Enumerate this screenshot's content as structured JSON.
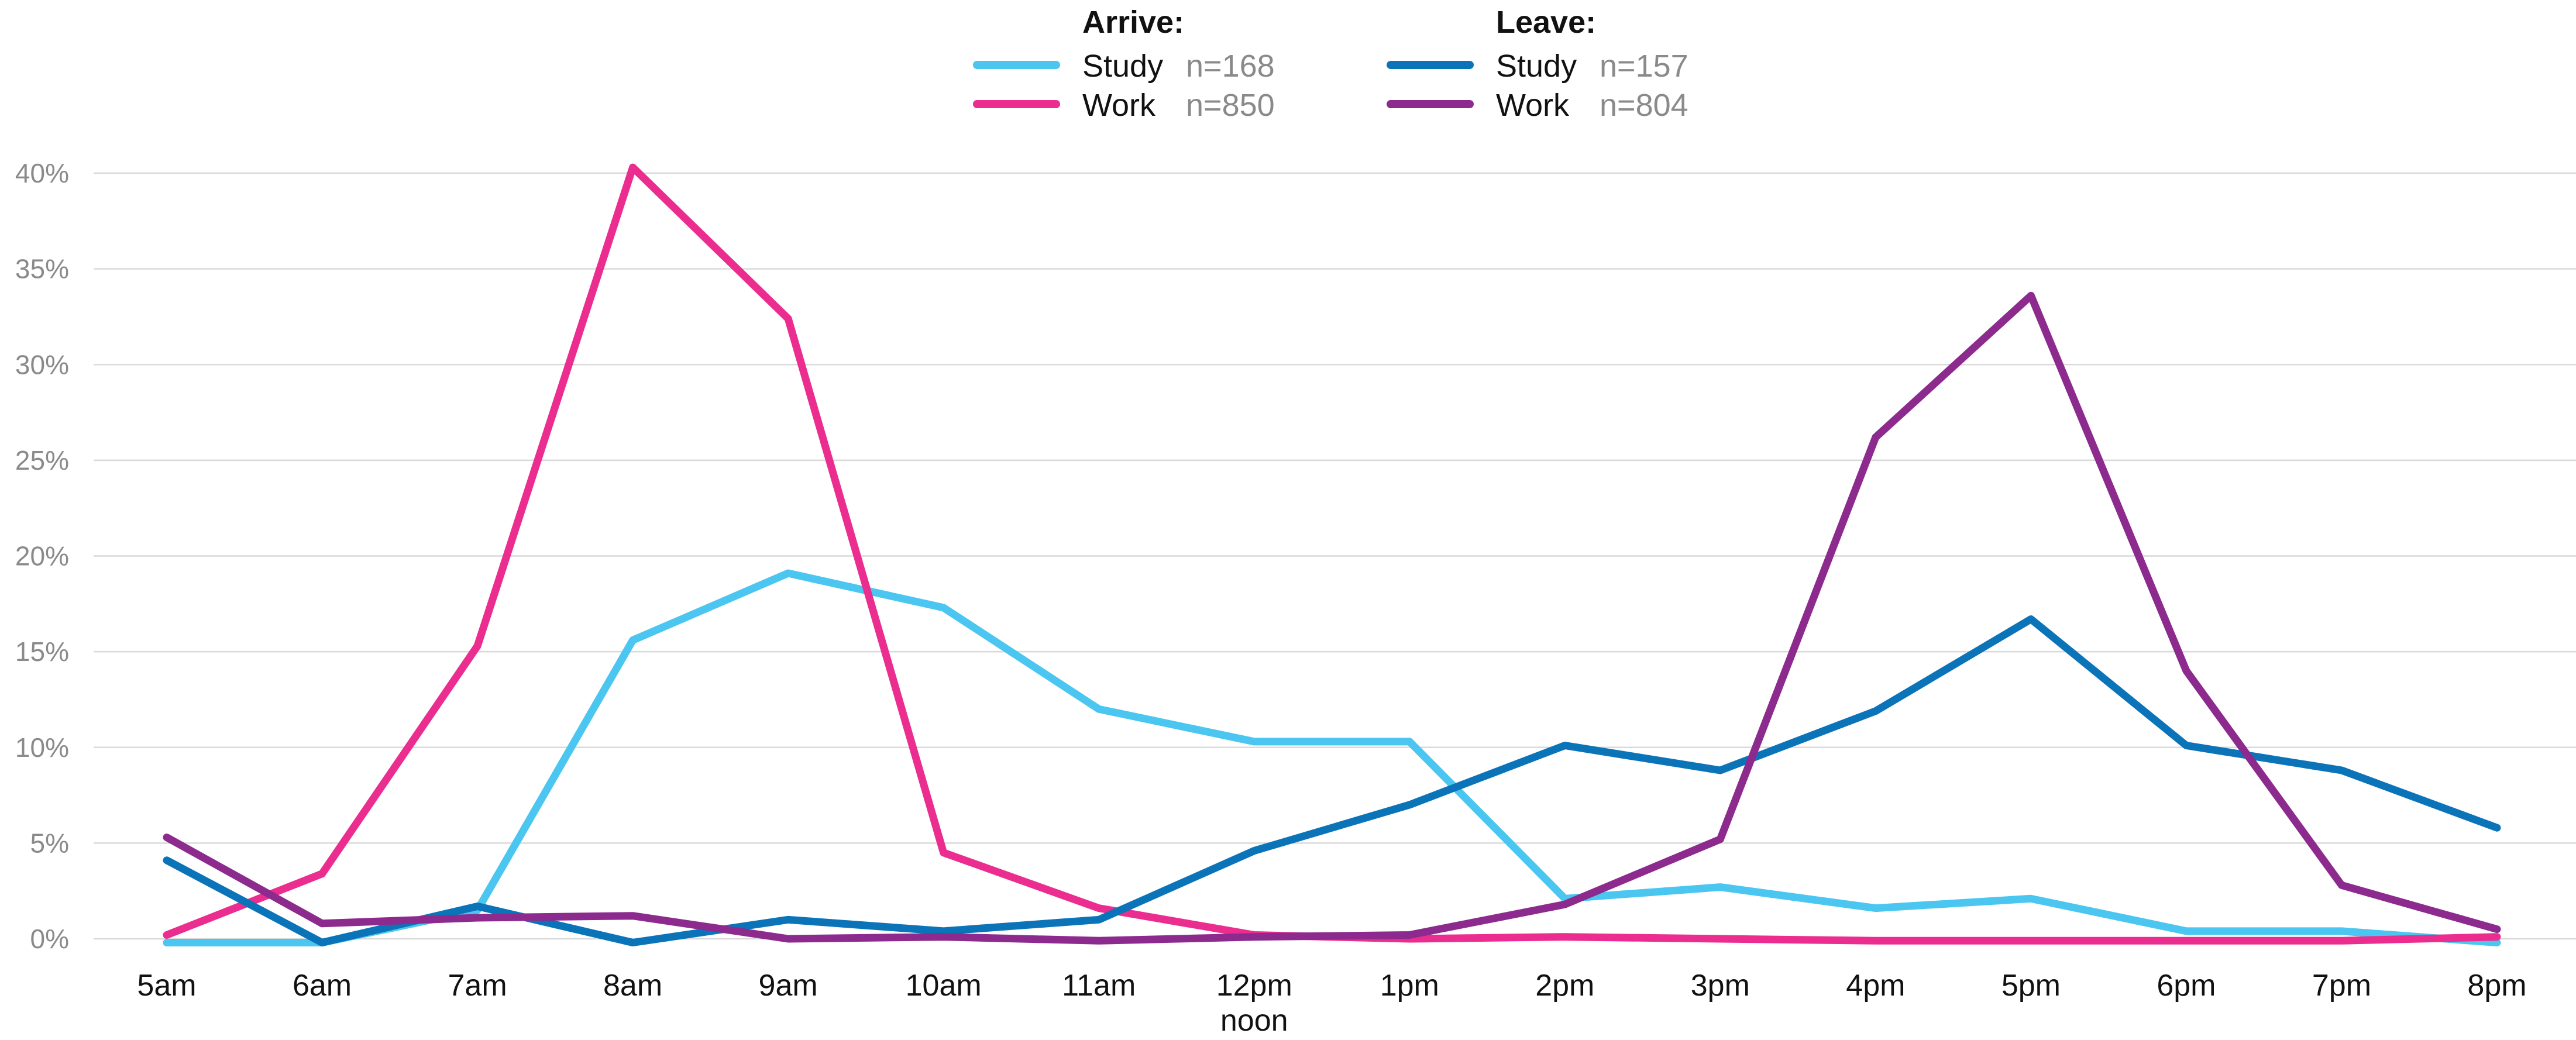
{
  "chart_data": {
    "type": "line",
    "title": "",
    "xlabel": "",
    "ylabel": "",
    "x": [
      "5am",
      "6am",
      "7am",
      "8am",
      "9am",
      "10am",
      "11am",
      "12pm",
      "1pm",
      "2pm",
      "3pm",
      "4pm",
      "5pm",
      "6pm",
      "7pm",
      "8pm"
    ],
    "x_sublabels": {
      "12pm": "noon"
    },
    "ylim": [
      0,
      40
    ],
    "yticks": [
      0,
      5,
      10,
      15,
      20,
      25,
      30,
      35,
      40
    ],
    "ytick_labels": [
      "0%",
      "5%",
      "10%",
      "15%",
      "20%",
      "25%",
      "30%",
      "35%",
      "40%"
    ],
    "grid": true,
    "legend_position": "top-center",
    "legend_groups": [
      {
        "heading": "Arrive:",
        "entries": [
          0,
          1
        ]
      },
      {
        "heading": "Leave:",
        "entries": [
          2,
          3
        ]
      }
    ],
    "series": [
      {
        "name": "Study",
        "n_label": "n=168",
        "color": "#4ac6f0",
        "values": [
          -0.2,
          -0.2,
          1.5,
          15.6,
          19.1,
          17.3,
          12.0,
          10.3,
          10.3,
          2.1,
          2.7,
          1.6,
          2.1,
          0.4,
          0.4,
          -0.2
        ]
      },
      {
        "name": "Work",
        "n_label": "n=850",
        "color": "#ea2d8f",
        "values": [
          0.2,
          3.4,
          15.3,
          40.3,
          32.4,
          4.5,
          1.6,
          0.2,
          0.0,
          0.1,
          0.0,
          -0.1,
          -0.1,
          -0.1,
          -0.1,
          0.1
        ]
      },
      {
        "name": "Study",
        "n_label": "n=157",
        "color": "#0b74b9",
        "values": [
          4.1,
          -0.2,
          1.7,
          -0.2,
          1.0,
          0.4,
          1.0,
          4.6,
          7.0,
          10.1,
          8.8,
          11.9,
          16.7,
          10.1,
          8.8,
          5.8
        ]
      },
      {
        "name": "Work",
        "n_label": "n=804",
        "color": "#8c2a8e",
        "values": [
          5.3,
          0.8,
          1.1,
          1.2,
          0.0,
          0.1,
          -0.1,
          0.1,
          0.2,
          1.8,
          5.2,
          26.2,
          33.6,
          14.0,
          2.8,
          0.5
        ]
      }
    ]
  }
}
